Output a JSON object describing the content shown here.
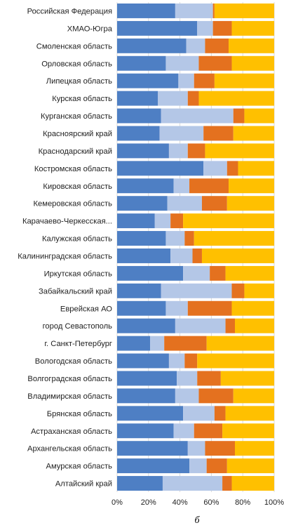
{
  "chart_data": {
    "type": "bar",
    "orientation": "horizontal",
    "stacked": "percent",
    "categories": [
      "Российская Федерация",
      "ХМАО-Югра",
      "Смоленская область",
      "Орловская область",
      "Липецкая область",
      "Курская область",
      "Курганская область",
      "Красноярский край",
      "Краснодарский край",
      "Костромская область",
      "Кировская область",
      "Кемеровская область",
      "Карачаево-Черкесская...",
      "Калужская область",
      "Калининградская область",
      "Иркутская область",
      "Забайкальский край",
      "Еврейская АО",
      "город Севастополь",
      "г. Санкт-Петербург",
      "Вологодская область",
      "Волгоградская область",
      "Владимирская область",
      "Брянская область",
      "Астраханская область",
      "Архангельская область",
      "Амурская область",
      "Алтайский край"
    ],
    "series": [
      {
        "color": "#4e7fc4",
        "values": [
          37,
          51,
          44,
          31,
          39,
          26,
          28,
          27,
          33,
          55,
          36,
          32,
          24,
          31,
          34,
          42,
          28,
          31,
          37,
          21,
          33,
          38,
          37,
          42,
          36,
          45,
          46,
          29
        ]
      },
      {
        "color": "#b4c7e7",
        "values": [
          24,
          10,
          12,
          21,
          10,
          19,
          46,
          28,
          12,
          15,
          10,
          22,
          10,
          12,
          14,
          17,
          45,
          14,
          32,
          9,
          10,
          13,
          15,
          20,
          13,
          11,
          11,
          38
        ]
      },
      {
        "color": "#e4711f",
        "values": [
          1,
          12,
          15,
          21,
          13,
          7,
          7,
          19,
          11,
          7,
          25,
          16,
          8,
          6,
          6,
          10,
          8,
          28,
          6,
          27,
          8,
          15,
          22,
          7,
          18,
          19,
          13,
          6
        ]
      },
      {
        "color": "#ffc000",
        "values": [
          38,
          27,
          29,
          27,
          38,
          48,
          19,
          26,
          44,
          23,
          29,
          30,
          58,
          51,
          46,
          31,
          19,
          27,
          25,
          43,
          49,
          34,
          26,
          31,
          33,
          25,
          30,
          27
        ]
      }
    ],
    "xlim": [
      0,
      100
    ],
    "x_ticks": [
      "0%",
      "20%",
      "40%",
      "60%",
      "80%",
      "100%"
    ],
    "grid": true,
    "caption": "б"
  }
}
